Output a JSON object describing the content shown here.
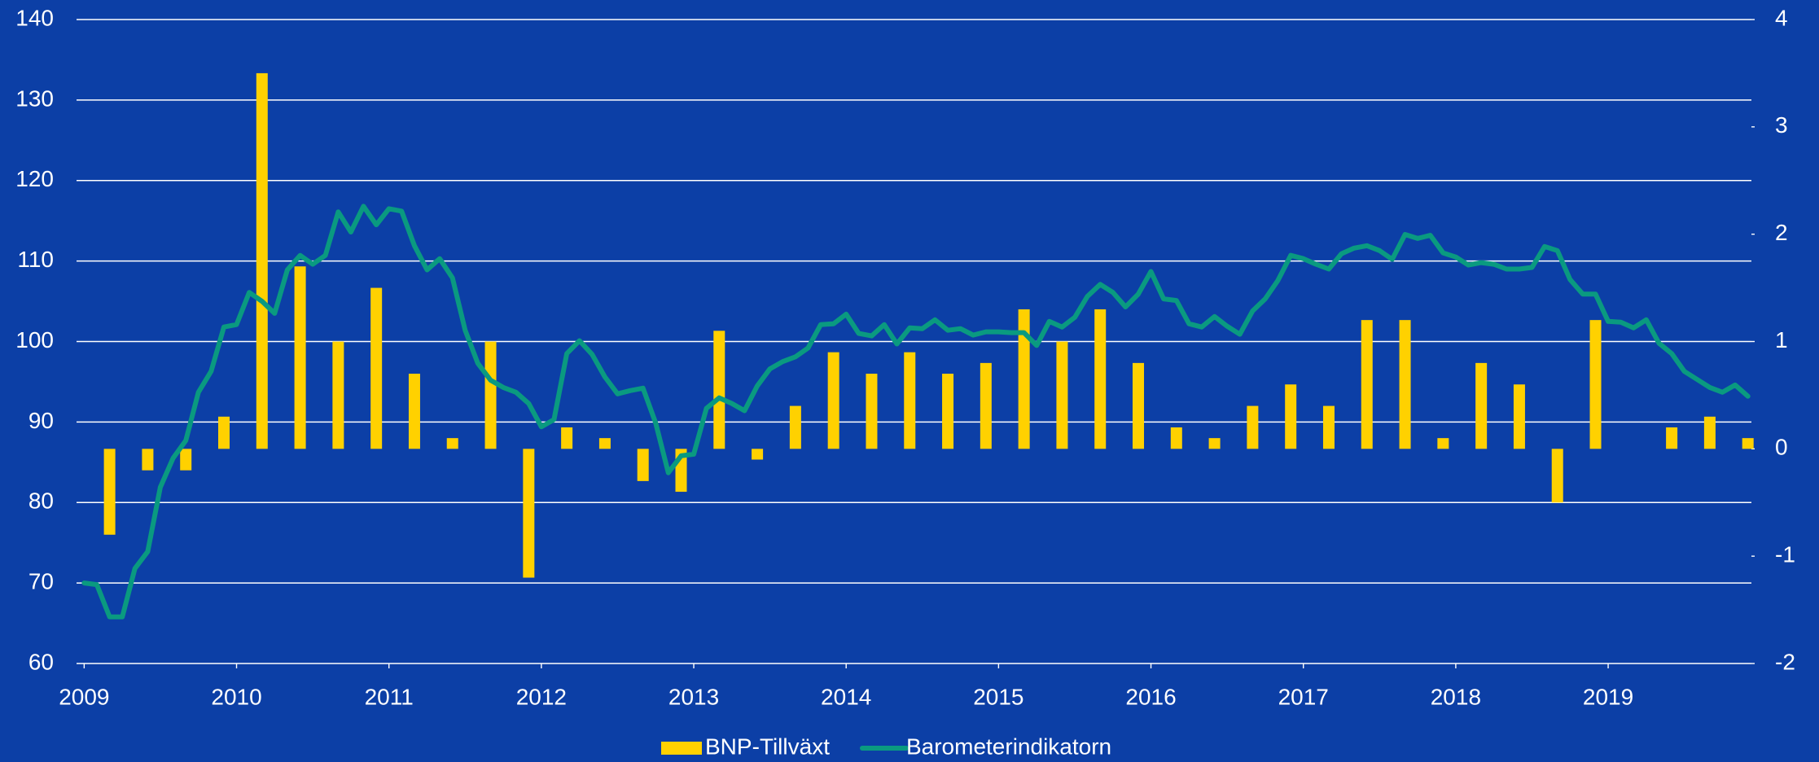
{
  "chart_data": {
    "type": "bar-line",
    "xlim": [
      2008.95,
      2019.94
    ],
    "xticks": [
      2009,
      2010,
      2011,
      2012,
      2013,
      2014,
      2015,
      2016,
      2017,
      2018,
      2019
    ],
    "ylim": [
      60,
      140
    ],
    "yticks": [
      60,
      70,
      80,
      90,
      100,
      110,
      120,
      130,
      140
    ],
    "y2lim": [
      -2,
      4
    ],
    "y2ticks": [
      -2,
      -1,
      0,
      1,
      2,
      3,
      4
    ],
    "grid": true,
    "legend": "bottom",
    "series": [
      {
        "name": "BNP-Tillväxt",
        "type": "bar",
        "axis": "y2",
        "color": "#ffd100",
        "x": [
          2009.167,
          2009.417,
          2009.667,
          2009.917,
          2010.167,
          2010.417,
          2010.667,
          2010.917,
          2011.167,
          2011.417,
          2011.667,
          2011.917,
          2012.167,
          2012.417,
          2012.667,
          2012.917,
          2013.167,
          2013.417,
          2013.667,
          2013.917,
          2014.167,
          2014.417,
          2014.667,
          2014.917,
          2015.167,
          2015.417,
          2015.667,
          2015.917,
          2016.167,
          2016.417,
          2016.667,
          2016.917,
          2017.167,
          2017.417,
          2017.667,
          2017.917,
          2018.167,
          2018.417,
          2018.667,
          2018.917,
          2019.167,
          2019.417,
          2019.667,
          2019.917
        ],
        "values": [
          -0.8,
          -0.2,
          -0.2,
          0.3,
          3.5,
          1.7,
          1.0,
          1.5,
          0.7,
          0.1,
          1.0,
          -1.2,
          0.2,
          0.1,
          -0.3,
          -0.4,
          1.1,
          -0.1,
          0.4,
          0.9,
          0.7,
          0.9,
          0.7,
          0.8,
          1.3,
          1.0,
          1.3,
          0.8,
          0.2,
          0.1,
          0.4,
          0.6,
          0.4,
          1.2,
          1.2,
          0.1,
          0.8,
          0.6,
          -0.5,
          1.2,
          0,
          0.2,
          0.3,
          0.1
        ]
      },
      {
        "name": "Barometerindikatorn",
        "type": "line",
        "axis": "y",
        "color": "#0a9a80",
        "x": [
          2009.0,
          2009.083,
          2009.167,
          2009.25,
          2009.333,
          2009.417,
          2009.5,
          2009.583,
          2009.667,
          2009.75,
          2009.833,
          2009.917,
          2010.0,
          2010.083,
          2010.167,
          2010.25,
          2010.333,
          2010.417,
          2010.5,
          2010.583,
          2010.667,
          2010.75,
          2010.833,
          2010.917,
          2011.0,
          2011.083,
          2011.167,
          2011.25,
          2011.333,
          2011.417,
          2011.5,
          2011.583,
          2011.667,
          2011.75,
          2011.833,
          2011.917,
          2012.0,
          2012.083,
          2012.167,
          2012.25,
          2012.333,
          2012.417,
          2012.5,
          2012.583,
          2012.667,
          2012.75,
          2012.833,
          2012.917,
          2013.0,
          2013.083,
          2013.167,
          2013.25,
          2013.333,
          2013.417,
          2013.5,
          2013.583,
          2013.667,
          2013.75,
          2013.833,
          2013.917,
          2014.0,
          2014.083,
          2014.167,
          2014.25,
          2014.333,
          2014.417,
          2014.5,
          2014.583,
          2014.667,
          2014.75,
          2014.833,
          2014.917,
          2015.0,
          2015.083,
          2015.167,
          2015.25,
          2015.333,
          2015.417,
          2015.5,
          2015.583,
          2015.667,
          2015.75,
          2015.833,
          2015.917,
          2016.0,
          2016.083,
          2016.167,
          2016.25,
          2016.333,
          2016.417,
          2016.5,
          2016.583,
          2016.667,
          2016.75,
          2016.833,
          2016.917,
          2017.0,
          2017.083,
          2017.167,
          2017.25,
          2017.333,
          2017.417,
          2017.5,
          2017.583,
          2017.667,
          2017.75,
          2017.833,
          2017.917,
          2018.0,
          2018.083,
          2018.167,
          2018.25,
          2018.333,
          2018.417,
          2018.5,
          2018.583,
          2018.667,
          2018.75,
          2018.833,
          2018.917,
          2019.0,
          2019.083,
          2019.167,
          2019.25,
          2019.333,
          2019.417,
          2019.5,
          2019.583,
          2019.667,
          2019.75,
          2019.833,
          2019.917
        ],
        "values": [
          70.0,
          69.8,
          65.8,
          65.8,
          71.8,
          73.9,
          81.9,
          85.5,
          87.7,
          93.7,
          96.3,
          101.8,
          102.1,
          106.1,
          105.0,
          103.5,
          108.9,
          110.7,
          109.6,
          110.7,
          116.1,
          113.6,
          116.8,
          114.5,
          116.5,
          116.2,
          111.9,
          108.9,
          110.3,
          107.9,
          101.4,
          97.3,
          95.2,
          94.3,
          93.7,
          92.3,
          89.4,
          90.3,
          98.5,
          100.1,
          98.4,
          95.6,
          93.5,
          93.9,
          94.2,
          89.9,
          83.7,
          85.8,
          86.0,
          91.7,
          93.0,
          92.3,
          91.4,
          94.5,
          96.6,
          97.5,
          98.1,
          99.2,
          102.1,
          102.2,
          103.4,
          101.0,
          100.7,
          102.1,
          99.7,
          101.7,
          101.6,
          102.7,
          101.4,
          101.6,
          100.8,
          101.2,
          101.2,
          101.1,
          101.1,
          99.5,
          102.5,
          101.8,
          103.0,
          105.6,
          107.1,
          106.1,
          104.3,
          105.9,
          108.7,
          105.3,
          105.1,
          102.2,
          101.8,
          103.1,
          101.9,
          100.9,
          103.8,
          105.3,
          107.6,
          110.7,
          110.3,
          109.6,
          109.0,
          110.9,
          111.6,
          111.9,
          111.3,
          110.2,
          113.3,
          112.8,
          113.2,
          111.0,
          110.5,
          109.5,
          109.8,
          109.6,
          109.0,
          109.0,
          109.2,
          111.8,
          111.3,
          107.7,
          105.9,
          105.9,
          102.5,
          102.4,
          101.7,
          102.7,
          99.8,
          98.5,
          96.3,
          95.3,
          94.3,
          93.7,
          94.6,
          93.2
        ]
      }
    ]
  }
}
